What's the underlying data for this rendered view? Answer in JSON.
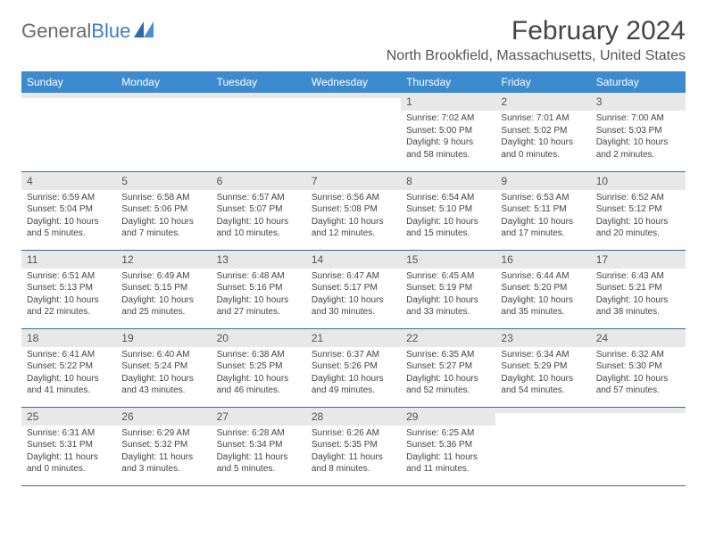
{
  "logo": {
    "text_gray": "General",
    "text_blue": "Blue"
  },
  "title": "February 2024",
  "location": "North Brookfield, Massachusetts, United States",
  "colors": {
    "header_bg": "#3d8bcf",
    "header_text": "#ffffff",
    "daynum_bg": "#e8e8e8",
    "row_divider": "#3d6a99",
    "logo_gray": "#6a6a6a",
    "logo_blue": "#3d7cc9",
    "body_text": "#444444"
  },
  "weekdays": [
    "Sunday",
    "Monday",
    "Tuesday",
    "Wednesday",
    "Thursday",
    "Friday",
    "Saturday"
  ],
  "weeks": [
    [
      {
        "blank": true
      },
      {
        "blank": true
      },
      {
        "blank": true
      },
      {
        "blank": true
      },
      {
        "day": "1",
        "sunrise": "Sunrise: 7:02 AM",
        "sunset": "Sunset: 5:00 PM",
        "daylight1": "Daylight: 9 hours",
        "daylight2": "and 58 minutes."
      },
      {
        "day": "2",
        "sunrise": "Sunrise: 7:01 AM",
        "sunset": "Sunset: 5:02 PM",
        "daylight1": "Daylight: 10 hours",
        "daylight2": "and 0 minutes."
      },
      {
        "day": "3",
        "sunrise": "Sunrise: 7:00 AM",
        "sunset": "Sunset: 5:03 PM",
        "daylight1": "Daylight: 10 hours",
        "daylight2": "and 2 minutes."
      }
    ],
    [
      {
        "day": "4",
        "sunrise": "Sunrise: 6:59 AM",
        "sunset": "Sunset: 5:04 PM",
        "daylight1": "Daylight: 10 hours",
        "daylight2": "and 5 minutes."
      },
      {
        "day": "5",
        "sunrise": "Sunrise: 6:58 AM",
        "sunset": "Sunset: 5:06 PM",
        "daylight1": "Daylight: 10 hours",
        "daylight2": "and 7 minutes."
      },
      {
        "day": "6",
        "sunrise": "Sunrise: 6:57 AM",
        "sunset": "Sunset: 5:07 PM",
        "daylight1": "Daylight: 10 hours",
        "daylight2": "and 10 minutes."
      },
      {
        "day": "7",
        "sunrise": "Sunrise: 6:56 AM",
        "sunset": "Sunset: 5:08 PM",
        "daylight1": "Daylight: 10 hours",
        "daylight2": "and 12 minutes."
      },
      {
        "day": "8",
        "sunrise": "Sunrise: 6:54 AM",
        "sunset": "Sunset: 5:10 PM",
        "daylight1": "Daylight: 10 hours",
        "daylight2": "and 15 minutes."
      },
      {
        "day": "9",
        "sunrise": "Sunrise: 6:53 AM",
        "sunset": "Sunset: 5:11 PM",
        "daylight1": "Daylight: 10 hours",
        "daylight2": "and 17 minutes."
      },
      {
        "day": "10",
        "sunrise": "Sunrise: 6:52 AM",
        "sunset": "Sunset: 5:12 PM",
        "daylight1": "Daylight: 10 hours",
        "daylight2": "and 20 minutes."
      }
    ],
    [
      {
        "day": "11",
        "sunrise": "Sunrise: 6:51 AM",
        "sunset": "Sunset: 5:13 PM",
        "daylight1": "Daylight: 10 hours",
        "daylight2": "and 22 minutes."
      },
      {
        "day": "12",
        "sunrise": "Sunrise: 6:49 AM",
        "sunset": "Sunset: 5:15 PM",
        "daylight1": "Daylight: 10 hours",
        "daylight2": "and 25 minutes."
      },
      {
        "day": "13",
        "sunrise": "Sunrise: 6:48 AM",
        "sunset": "Sunset: 5:16 PM",
        "daylight1": "Daylight: 10 hours",
        "daylight2": "and 27 minutes."
      },
      {
        "day": "14",
        "sunrise": "Sunrise: 6:47 AM",
        "sunset": "Sunset: 5:17 PM",
        "daylight1": "Daylight: 10 hours",
        "daylight2": "and 30 minutes."
      },
      {
        "day": "15",
        "sunrise": "Sunrise: 6:45 AM",
        "sunset": "Sunset: 5:19 PM",
        "daylight1": "Daylight: 10 hours",
        "daylight2": "and 33 minutes."
      },
      {
        "day": "16",
        "sunrise": "Sunrise: 6:44 AM",
        "sunset": "Sunset: 5:20 PM",
        "daylight1": "Daylight: 10 hours",
        "daylight2": "and 35 minutes."
      },
      {
        "day": "17",
        "sunrise": "Sunrise: 6:43 AM",
        "sunset": "Sunset: 5:21 PM",
        "daylight1": "Daylight: 10 hours",
        "daylight2": "and 38 minutes."
      }
    ],
    [
      {
        "day": "18",
        "sunrise": "Sunrise: 6:41 AM",
        "sunset": "Sunset: 5:22 PM",
        "daylight1": "Daylight: 10 hours",
        "daylight2": "and 41 minutes."
      },
      {
        "day": "19",
        "sunrise": "Sunrise: 6:40 AM",
        "sunset": "Sunset: 5:24 PM",
        "daylight1": "Daylight: 10 hours",
        "daylight2": "and 43 minutes."
      },
      {
        "day": "20",
        "sunrise": "Sunrise: 6:38 AM",
        "sunset": "Sunset: 5:25 PM",
        "daylight1": "Daylight: 10 hours",
        "daylight2": "and 46 minutes."
      },
      {
        "day": "21",
        "sunrise": "Sunrise: 6:37 AM",
        "sunset": "Sunset: 5:26 PM",
        "daylight1": "Daylight: 10 hours",
        "daylight2": "and 49 minutes."
      },
      {
        "day": "22",
        "sunrise": "Sunrise: 6:35 AM",
        "sunset": "Sunset: 5:27 PM",
        "daylight1": "Daylight: 10 hours",
        "daylight2": "and 52 minutes."
      },
      {
        "day": "23",
        "sunrise": "Sunrise: 6:34 AM",
        "sunset": "Sunset: 5:29 PM",
        "daylight1": "Daylight: 10 hours",
        "daylight2": "and 54 minutes."
      },
      {
        "day": "24",
        "sunrise": "Sunrise: 6:32 AM",
        "sunset": "Sunset: 5:30 PM",
        "daylight1": "Daylight: 10 hours",
        "daylight2": "and 57 minutes."
      }
    ],
    [
      {
        "day": "25",
        "sunrise": "Sunrise: 6:31 AM",
        "sunset": "Sunset: 5:31 PM",
        "daylight1": "Daylight: 11 hours",
        "daylight2": "and 0 minutes."
      },
      {
        "day": "26",
        "sunrise": "Sunrise: 6:29 AM",
        "sunset": "Sunset: 5:32 PM",
        "daylight1": "Daylight: 11 hours",
        "daylight2": "and 3 minutes."
      },
      {
        "day": "27",
        "sunrise": "Sunrise: 6:28 AM",
        "sunset": "Sunset: 5:34 PM",
        "daylight1": "Daylight: 11 hours",
        "daylight2": "and 5 minutes."
      },
      {
        "day": "28",
        "sunrise": "Sunrise: 6:26 AM",
        "sunset": "Sunset: 5:35 PM",
        "daylight1": "Daylight: 11 hours",
        "daylight2": "and 8 minutes."
      },
      {
        "day": "29",
        "sunrise": "Sunrise: 6:25 AM",
        "sunset": "Sunset: 5:36 PM",
        "daylight1": "Daylight: 11 hours",
        "daylight2": "and 11 minutes."
      },
      {
        "blank": true
      },
      {
        "blank": true
      }
    ]
  ]
}
